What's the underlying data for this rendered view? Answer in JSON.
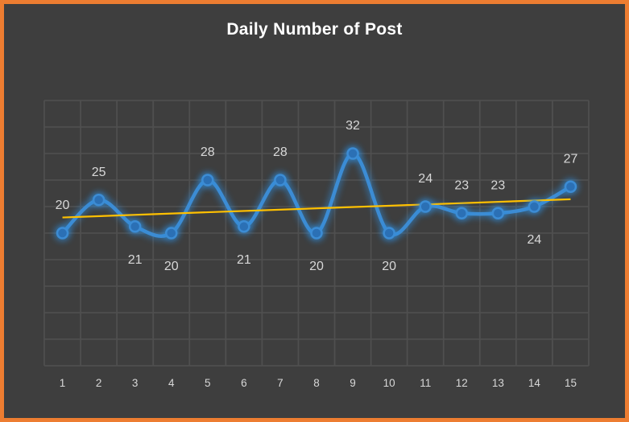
{
  "chart_data": {
    "type": "line",
    "title": "Daily Number of Post",
    "categories": [
      "1",
      "2",
      "3",
      "4",
      "5",
      "6",
      "7",
      "8",
      "9",
      "10",
      "11",
      "12",
      "13",
      "14",
      "15"
    ],
    "series": [
      {
        "name": "Daily Number of Post",
        "values": [
          20,
          25,
          21,
          20,
          28,
          21,
          28,
          20,
          32,
          20,
          24,
          23,
          23,
          24,
          27
        ]
      }
    ],
    "label_positions": [
      "above",
      "above",
      "below",
      "below",
      "above",
      "below",
      "above",
      "below",
      "above",
      "below",
      "above",
      "above",
      "above",
      "below",
      "above"
    ],
    "xlabel": "",
    "ylabel": "",
    "ylim": [
      0,
      40
    ],
    "y_grid_step": 4,
    "grid": true,
    "legend": "none",
    "trendline": {
      "type": "linear",
      "color": "#FFC000"
    },
    "colors": {
      "line": "#3C8CD4",
      "marker": "#2B70B5",
      "glow": "#2F8FE0",
      "labels": "#D8D8D8",
      "axis": "#D8D8D8",
      "grid": "#4F4F4F",
      "background": "#3E3E3E",
      "border": "#ED7D31",
      "title": "#FFFFFF"
    }
  }
}
